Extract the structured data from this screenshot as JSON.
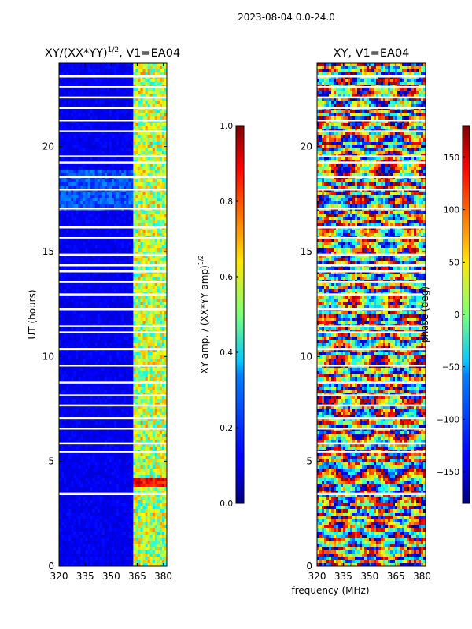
{
  "figure_title": "2023-08-04 0.0-24.0",
  "chart_data": [
    {
      "type": "heatmap",
      "title": "XY/(XX*YY)",
      "title_sup": "1/2",
      "title_suffix": ", V1=EA04",
      "xlabel": "frequency (MHz)",
      "ylabel": "UT (hours)",
      "xlim": [
        320,
        382
      ],
      "ylim": [
        0,
        24
      ],
      "xticks": [
        320,
        335,
        350,
        365,
        380
      ],
      "yticks": [
        0,
        5,
        10,
        15,
        20
      ],
      "colorbar": {
        "label": "XY amp. / (XX*YY amp)",
        "label_sup": "1/2",
        "range": [
          0.0,
          1.0
        ],
        "ticks": [
          "0.0",
          "0.2",
          "0.4",
          "0.6",
          "0.8",
          "1.0"
        ],
        "colormap": "jet"
      }
    },
    {
      "type": "heatmap",
      "title": "XY, V1=EA04",
      "xlabel": "frequency (MHz)",
      "ylabel": "",
      "xlim": [
        320,
        382
      ],
      "ylim": [
        0,
        24
      ],
      "xticks": [
        320,
        335,
        350,
        365,
        380
      ],
      "yticks": [
        0,
        5,
        10,
        15,
        20
      ],
      "colorbar": {
        "label": "phase (deg)",
        "range": [
          -180,
          180
        ],
        "ticks": [
          "−150",
          "−100",
          "−50",
          "0",
          "50",
          "100",
          "150"
        ],
        "colormap": "jet"
      }
    }
  ]
}
